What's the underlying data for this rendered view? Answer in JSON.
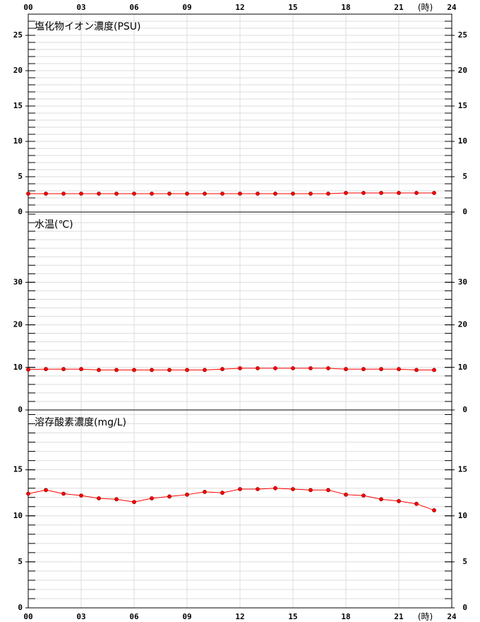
{
  "chart_data": [
    {
      "type": "line",
      "title": "塩化物イオン濃度(PSU)",
      "color": "#ff0000",
      "x": [
        0,
        1,
        2,
        3,
        4,
        5,
        6,
        7,
        8,
        9,
        10,
        11,
        12,
        13,
        14,
        15,
        16,
        17,
        18,
        19,
        20,
        21,
        22,
        23
      ],
      "values": [
        2.6,
        2.6,
        2.6,
        2.6,
        2.6,
        2.6,
        2.6,
        2.6,
        2.6,
        2.6,
        2.6,
        2.6,
        2.6,
        2.6,
        2.6,
        2.6,
        2.6,
        2.6,
        2.7,
        2.7,
        2.7,
        2.7,
        2.7,
        2.7
      ],
      "xlim": [
        0,
        24
      ],
      "xticks": [
        {
          "value": 0,
          "label": "00"
        },
        {
          "value": 3,
          "label": "03"
        },
        {
          "value": 6,
          "label": "06"
        },
        {
          "value": 9,
          "label": "09"
        },
        12,
        15,
        18,
        21,
        24
      ],
      "xlabel": "(時)",
      "xaxis_position": "top",
      "ylim": [
        0,
        28
      ],
      "yticks": [
        0,
        5,
        10,
        15,
        20,
        25
      ],
      "minor_step": 1,
      "grid": true
    },
    {
      "type": "line",
      "title": "水温(℃)",
      "color": "#ff0000",
      "x": [
        0,
        1,
        2,
        3,
        4,
        5,
        6,
        7,
        8,
        9,
        10,
        11,
        12,
        13,
        14,
        15,
        16,
        17,
        18,
        19,
        20,
        21,
        22,
        23
      ],
      "values": [
        9.5,
        9.6,
        9.6,
        9.6,
        9.4,
        9.4,
        9.4,
        9.4,
        9.4,
        9.4,
        9.4,
        9.6,
        9.8,
        9.8,
        9.8,
        9.8,
        9.8,
        9.8,
        9.6,
        9.6,
        9.6,
        9.6,
        9.4,
        9.4
      ],
      "xlim": [
        0,
        24
      ],
      "xticks": [
        0,
        3,
        6,
        9,
        12,
        15,
        18,
        21,
        24
      ],
      "ylim": [
        0,
        46.5
      ],
      "yticks": [
        0,
        10,
        20,
        30
      ],
      "minor_step": 2,
      "grid": true
    },
    {
      "type": "line",
      "title": "溶存酸素濃度(mg/L)",
      "color": "#ff0000",
      "x": [
        0,
        1,
        2,
        3,
        4,
        5,
        6,
        7,
        8,
        9,
        10,
        11,
        12,
        13,
        14,
        15,
        16,
        17,
        18,
        19,
        20,
        21,
        22,
        23
      ],
      "values": [
        12.4,
        12.8,
        12.4,
        12.2,
        11.9,
        11.8,
        11.5,
        11.9,
        12.1,
        12.3,
        12.6,
        12.5,
        12.9,
        12.9,
        13.0,
        12.9,
        12.8,
        12.8,
        12.3,
        12.2,
        11.8,
        11.6,
        11.3,
        10.6
      ],
      "xlim": [
        0,
        24
      ],
      "xticks": [
        {
          "value": 0,
          "label": "00"
        },
        {
          "value": 3,
          "label": "03"
        },
        {
          "value": 6,
          "label": "06"
        },
        {
          "value": 9,
          "label": "09"
        },
        12,
        15,
        18,
        21,
        24
      ],
      "xlabel": "(時)",
      "xaxis_position": "bottom",
      "ylim": [
        0,
        21.5
      ],
      "yticks": [
        0,
        5,
        10,
        15
      ],
      "minor_step": 1,
      "grid": true
    }
  ]
}
